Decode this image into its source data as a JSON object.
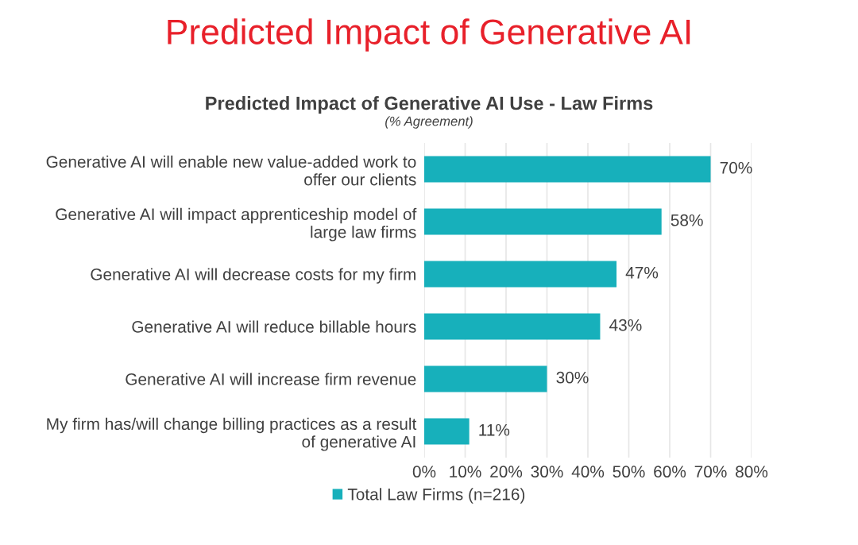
{
  "chart_data": {
    "type": "bar",
    "orientation": "horizontal",
    "title": "Predicted Impact of Generative AI",
    "subtitle": "Predicted Impact of Generative AI Use - Law Firms",
    "annotations": [
      "(% Agreement)"
    ],
    "categories": [
      "Generative AI will enable new value-added work to\noffer our clients",
      "Generative AI will impact apprenticeship model of\nlarge law firms",
      "Generative AI will decrease costs for my firm",
      "Generative AI will reduce billable hours",
      "Generative AI will increase firm revenue",
      "My firm has/will change billing practices as a result\nof generative AI"
    ],
    "series": [
      {
        "name": "Total Law Firms (n=216)",
        "color": "#17b0bb",
        "values": [
          70,
          58,
          47,
          43,
          30,
          11
        ],
        "value_labels": [
          "70%",
          "58%",
          "47%",
          "43%",
          "30%",
          "11%"
        ]
      }
    ],
    "xlim": [
      0,
      80
    ],
    "xticks": [
      {
        "value": 0,
        "label": "0%"
      },
      {
        "value": 10,
        "label": "10%"
      },
      {
        "value": 20,
        "label": "20%"
      },
      {
        "value": 30,
        "label": "30%"
      },
      {
        "value": 40,
        "label": "40%"
      },
      {
        "value": 50,
        "label": "50%"
      },
      {
        "value": 60,
        "label": "60%"
      },
      {
        "value": 70,
        "label": "70%"
      },
      {
        "value": 80,
        "label": "80%"
      }
    ],
    "grid": "x",
    "legend": "bottom"
  }
}
